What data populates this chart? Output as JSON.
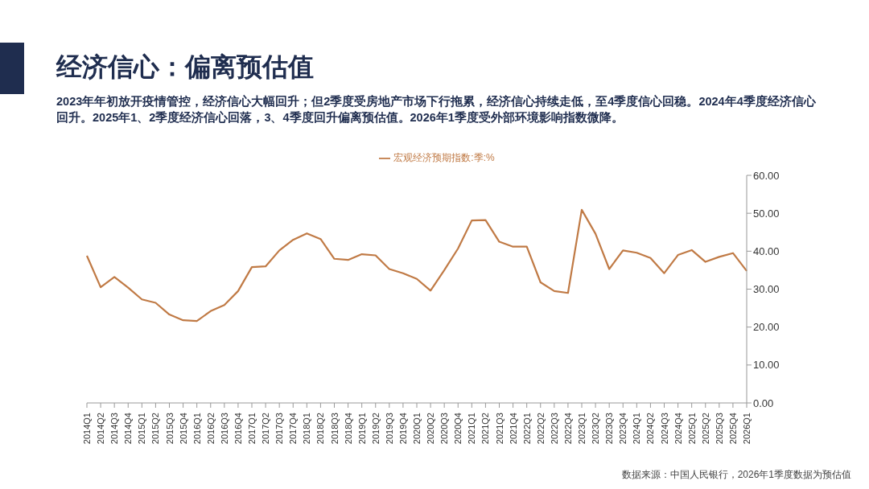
{
  "chart_data": {
    "type": "line",
    "title": "经济信心：偏离预估值",
    "subtitle": "2023年年初放开疫情管控，经济信心大幅回升；但2季度受房地产市场下行拖累，经济信心持续走低，至4季度信心回稳。2024年4季度经济信心回升。2025年1、2季度经济信心回落，3、4季度回升偏离预估值。2026年1季度受外部环境影响指数微降。",
    "annotations": [
      "数据来源：中国人民银行，2026年1季度数据为预估值"
    ],
    "categories": [
      "2014Q1",
      "2014Q2",
      "2014Q3",
      "2014Q4",
      "2015Q1",
      "2015Q2",
      "2015Q3",
      "2015Q4",
      "2016Q1",
      "2016Q2",
      "2016Q3",
      "2016Q4",
      "2017Q1",
      "2017Q2",
      "2017Q3",
      "2017Q4",
      "2018Q1",
      "2018Q2",
      "2018Q3",
      "2018Q4",
      "2019Q1",
      "2019Q2",
      "2019Q3",
      "2019Q4",
      "2020Q1",
      "2020Q2",
      "2020Q3",
      "2020Q4",
      "2021Q1",
      "2021Q2",
      "2021Q3",
      "2021Q4",
      "2022Q1",
      "2022Q2",
      "2022Q3",
      "2022Q4",
      "2023Q1",
      "2023Q2",
      "2023Q3",
      "2023Q4",
      "2024Q1",
      "2024Q2",
      "2024Q3",
      "2024Q4",
      "2025Q1",
      "2025Q2",
      "2025Q3",
      "2025Q4",
      "2026Q1"
    ],
    "series": [
      {
        "name": "宏观经济预期指数:季:%",
        "color": "#c07a45",
        "values": [
          38.8,
          30.5,
          33.2,
          30.4,
          27.3,
          26.4,
          23.3,
          21.8,
          21.6,
          24.2,
          25.8,
          29.5,
          35.8,
          36.0,
          40.2,
          43.0,
          44.7,
          43.2,
          38.0,
          37.7,
          39.2,
          38.9,
          35.3,
          34.2,
          32.7,
          29.6,
          35.0,
          40.7,
          48.1,
          48.2,
          42.5,
          41.2,
          41.2,
          31.8,
          29.5,
          29.0,
          50.9,
          44.6,
          35.3,
          40.2,
          39.6,
          38.2,
          34.2,
          39.0,
          40.3,
          37.2,
          38.5,
          39.5,
          34.8
        ]
      }
    ],
    "ylim": [
      0,
      60
    ],
    "yticks": [
      {
        "value": 0,
        "label": "0.00"
      },
      {
        "value": 10,
        "label": "10.00"
      },
      {
        "value": 20,
        "label": "20.00"
      },
      {
        "value": 30,
        "label": "30.00"
      },
      {
        "value": 40,
        "label": "40.00"
      },
      {
        "value": 50,
        "label": "50.00"
      },
      {
        "value": 60,
        "label": "60.00"
      }
    ],
    "legend": "top",
    "grid": false,
    "marker": "none",
    "line_style": "solid"
  }
}
